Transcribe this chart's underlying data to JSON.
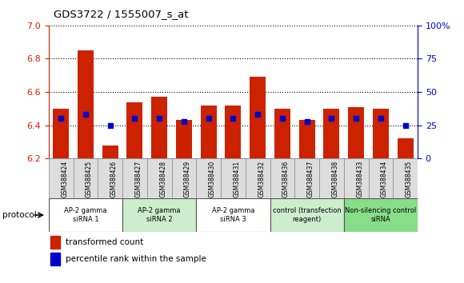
{
  "title": "GDS3722 / 1555007_s_at",
  "samples": [
    "GSM388424",
    "GSM388425",
    "GSM388426",
    "GSM388427",
    "GSM388428",
    "GSM388429",
    "GSM388430",
    "GSM388431",
    "GSM388432",
    "GSM388436",
    "GSM388437",
    "GSM388438",
    "GSM388433",
    "GSM388434",
    "GSM388435"
  ],
  "transformed_count": [
    6.5,
    6.85,
    6.28,
    6.54,
    6.57,
    6.43,
    6.52,
    6.52,
    6.69,
    6.5,
    6.43,
    6.5,
    6.51,
    6.5,
    6.32
  ],
  "percentile_rank": [
    30,
    33,
    25,
    30,
    30,
    28,
    30,
    30,
    33,
    30,
    28,
    30,
    30,
    30,
    25
  ],
  "ylim_left": [
    6.2,
    7.0
  ],
  "ylim_right": [
    0,
    100
  ],
  "yticks_left": [
    6.2,
    6.4,
    6.6,
    6.8,
    7.0
  ],
  "yticks_right": [
    0,
    25,
    50,
    75,
    100
  ],
  "bar_color": "#cc2200",
  "dot_color": "#0000cc",
  "bar_bottom": 6.2,
  "groups": [
    {
      "label": "AP-2 gamma\nsiRNA 1",
      "indices": [
        0,
        1,
        2
      ],
      "color": "#ffffff"
    },
    {
      "label": "AP-2 gamma\nsiRNA 2",
      "indices": [
        3,
        4,
        5
      ],
      "color": "#cceecc"
    },
    {
      "label": "AP-2 gamma\nsiRNA 3",
      "indices": [
        6,
        7,
        8
      ],
      "color": "#ffffff"
    },
    {
      "label": "control (transfection\nreagent)",
      "indices": [
        9,
        10,
        11
      ],
      "color": "#cceecc"
    },
    {
      "label": "Non-silencing control\nsiRNA",
      "indices": [
        12,
        13,
        14
      ],
      "color": "#88dd88"
    }
  ],
  "xlabel_protocol": "protocol",
  "legend_tc": "transformed count",
  "legend_pr": "percentile rank within the sample",
  "left_axis_color": "#cc2200",
  "right_axis_color": "#0000cc",
  "grid_color": "#000000"
}
